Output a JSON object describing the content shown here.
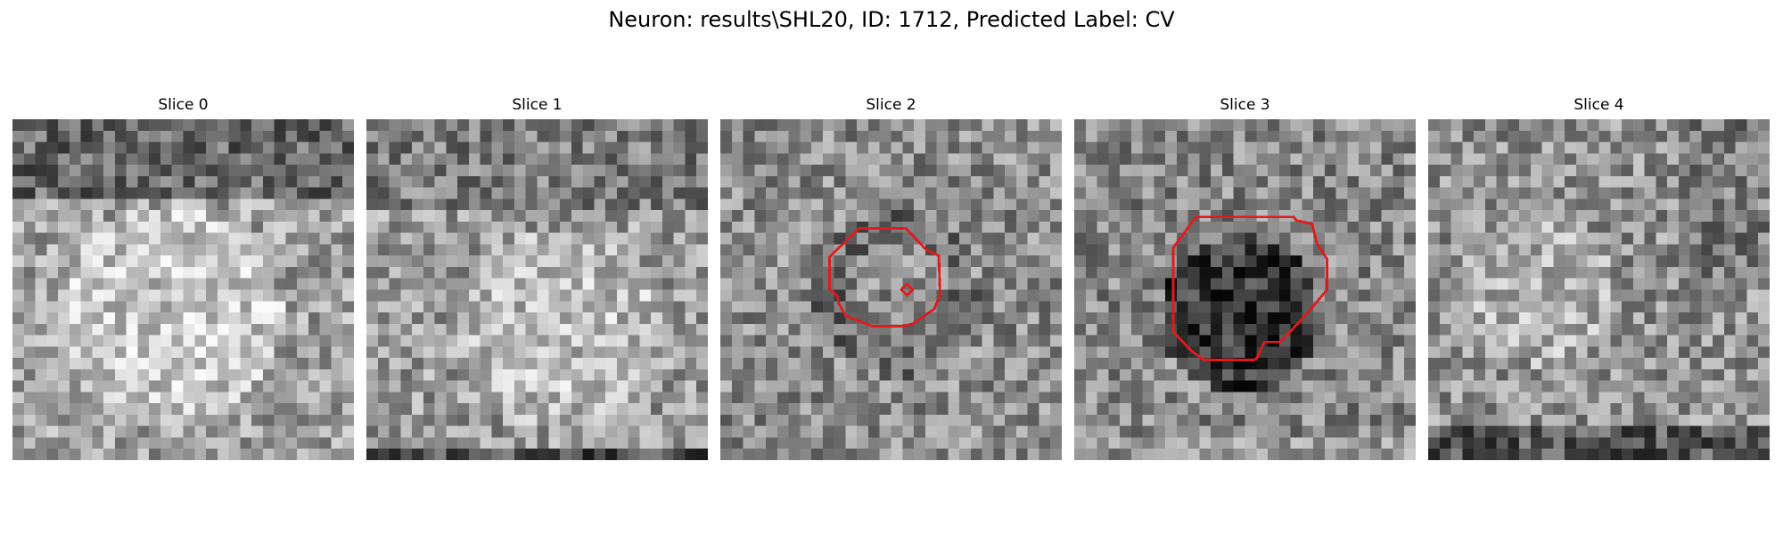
{
  "figure": {
    "title": "Neuron: results\\SHL20, ID: 1712, Predicted Label: CV"
  },
  "panels": [
    {
      "title": "Slice 0",
      "seed": 11,
      "bias": 0.08
    },
    {
      "title": "Slice 1",
      "seed": 23,
      "bias": 0.06
    },
    {
      "title": "Slice 2",
      "seed": 37,
      "bias": 0.0
    },
    {
      "title": "Slice 3",
      "seed": 51,
      "bias": -0.02
    },
    {
      "title": "Slice 4",
      "seed": 67,
      "bias": 0.02
    }
  ],
  "colors": {
    "contour": "#e31a1c",
    "background": "#ffffff"
  }
}
